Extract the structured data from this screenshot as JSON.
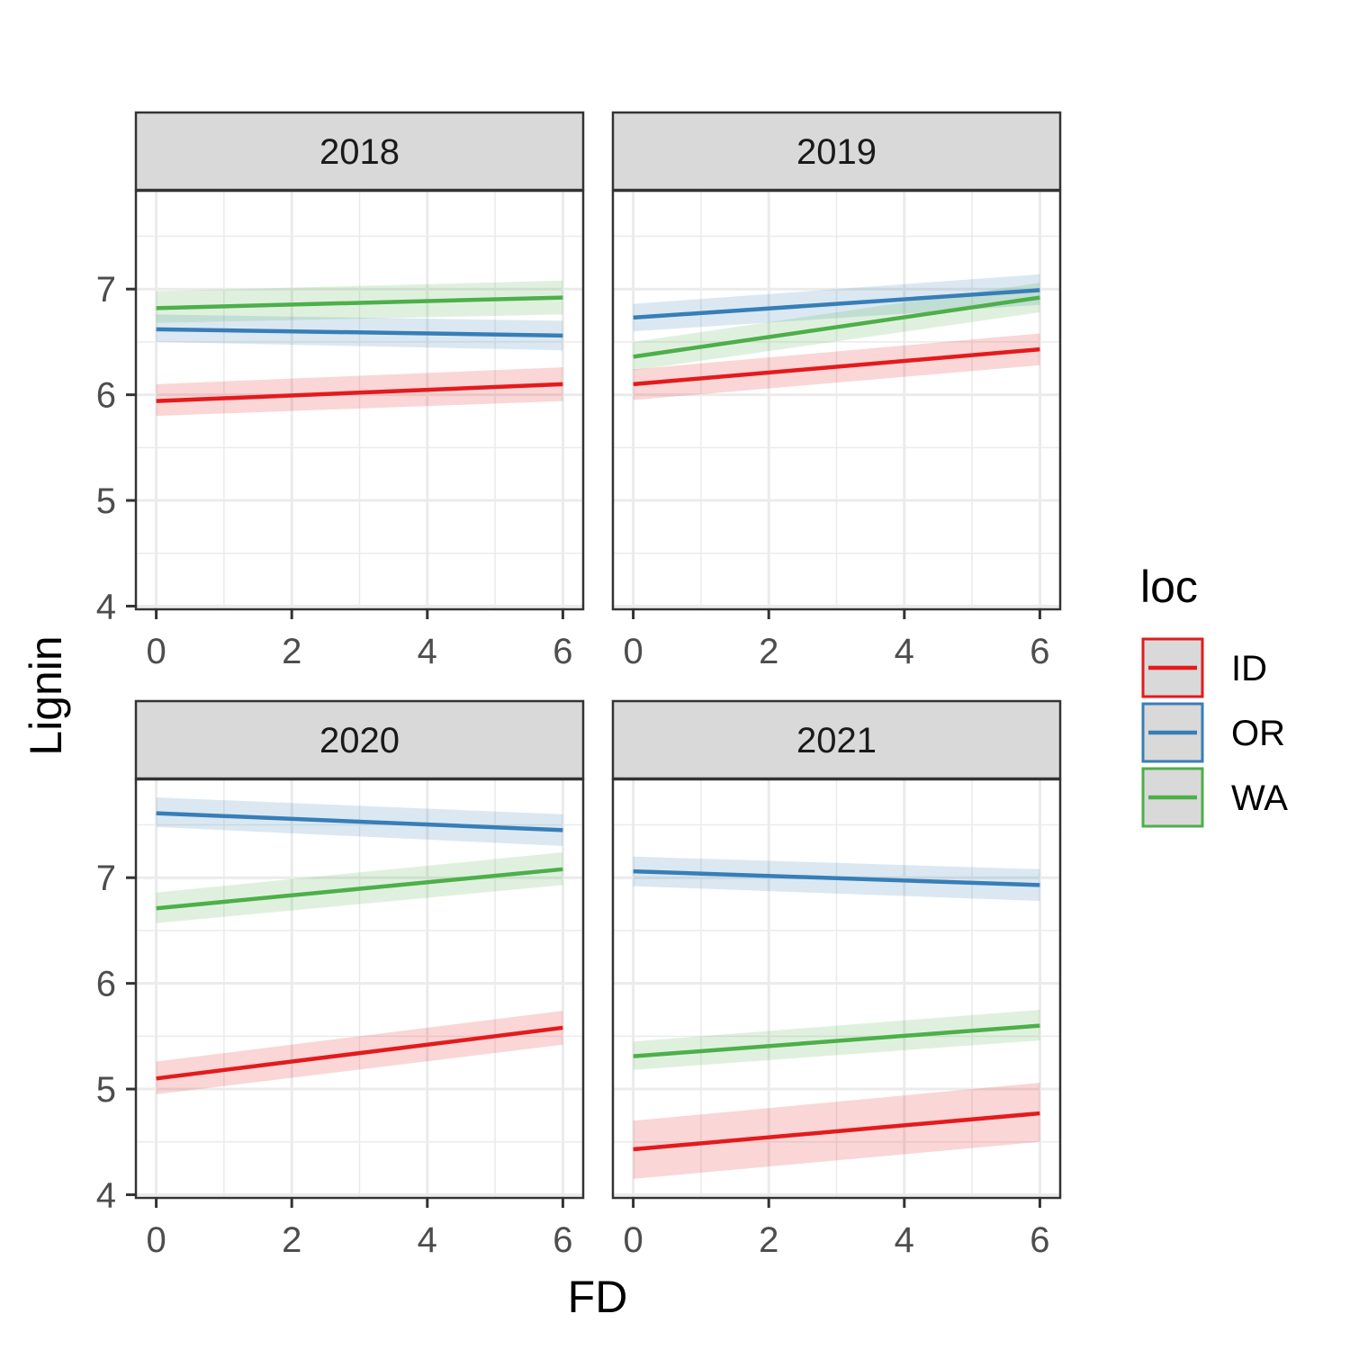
{
  "chart_data": {
    "type": "line",
    "facet_by": "year",
    "xlabel": "FD",
    "ylabel": "Lignin",
    "xlim": [
      -0.3,
      6.3
    ],
    "ylim": [
      3.97,
      7.93
    ],
    "x_ticks": [
      0,
      2,
      4,
      6
    ],
    "y_ticks": [
      4,
      5,
      6,
      7
    ],
    "grid": true,
    "legend": {
      "title": "loc",
      "placement": "right",
      "entries": [
        "ID",
        "OR",
        "WA"
      ]
    },
    "colors": {
      "ID": "#e41a1c",
      "OR": "#377eb8",
      "WA": "#4daf4a"
    },
    "panels": [
      {
        "label": "2018",
        "series": [
          {
            "name": "ID",
            "x": [
              0,
              6
            ],
            "y": [
              5.94,
              6.1
            ],
            "band_lo": [
              5.8,
              5.94
            ],
            "band_hi": [
              6.1,
              6.26
            ]
          },
          {
            "name": "OR",
            "x": [
              0,
              6
            ],
            "y": [
              6.62,
              6.56
            ],
            "band_lo": [
              6.5,
              6.42
            ],
            "band_hi": [
              6.76,
              6.7
            ]
          },
          {
            "name": "WA",
            "x": [
              0,
              6
            ],
            "y": [
              6.82,
              6.92
            ],
            "band_lo": [
              6.68,
              6.76
            ],
            "band_hi": [
              6.98,
              7.08
            ]
          }
        ]
      },
      {
        "label": "2019",
        "series": [
          {
            "name": "ID",
            "x": [
              0,
              6
            ],
            "y": [
              6.1,
              6.43
            ],
            "band_lo": [
              5.95,
              6.28
            ],
            "band_hi": [
              6.24,
              6.58
            ]
          },
          {
            "name": "OR",
            "x": [
              0,
              6
            ],
            "y": [
              6.73,
              6.99
            ],
            "band_lo": [
              6.6,
              6.85
            ],
            "band_hi": [
              6.86,
              7.14
            ]
          },
          {
            "name": "WA",
            "x": [
              0,
              6
            ],
            "y": [
              6.36,
              6.92
            ],
            "band_lo": [
              6.23,
              6.78
            ],
            "band_hi": [
              6.5,
              7.06
            ]
          }
        ]
      },
      {
        "label": "2020",
        "series": [
          {
            "name": "ID",
            "x": [
              0,
              6
            ],
            "y": [
              5.1,
              5.58
            ],
            "band_lo": [
              4.95,
              5.42
            ],
            "band_hi": [
              5.26,
              5.74
            ]
          },
          {
            "name": "OR",
            "x": [
              0,
              6
            ],
            "y": [
              7.61,
              7.45
            ],
            "band_lo": [
              7.48,
              7.3
            ],
            "band_hi": [
              7.76,
              7.6
            ]
          },
          {
            "name": "WA",
            "x": [
              0,
              6
            ],
            "y": [
              6.71,
              7.08
            ],
            "band_lo": [
              6.57,
              6.93
            ],
            "band_hi": [
              6.86,
              7.24
            ]
          }
        ]
      },
      {
        "label": "2021",
        "series": [
          {
            "name": "ID",
            "x": [
              0,
              6
            ],
            "y": [
              4.43,
              4.77
            ],
            "band_lo": [
              4.15,
              4.5
            ],
            "band_hi": [
              4.7,
              5.06
            ]
          },
          {
            "name": "OR",
            "x": [
              0,
              6
            ],
            "y": [
              7.06,
              6.93
            ],
            "band_lo": [
              6.92,
              6.78
            ],
            "band_hi": [
              7.2,
              7.08
            ]
          },
          {
            "name": "WA",
            "x": [
              0,
              6
            ],
            "y": [
              5.31,
              5.6
            ],
            "band_lo": [
              5.18,
              5.46
            ],
            "band_hi": [
              5.45,
              5.75
            ]
          }
        ]
      }
    ]
  }
}
